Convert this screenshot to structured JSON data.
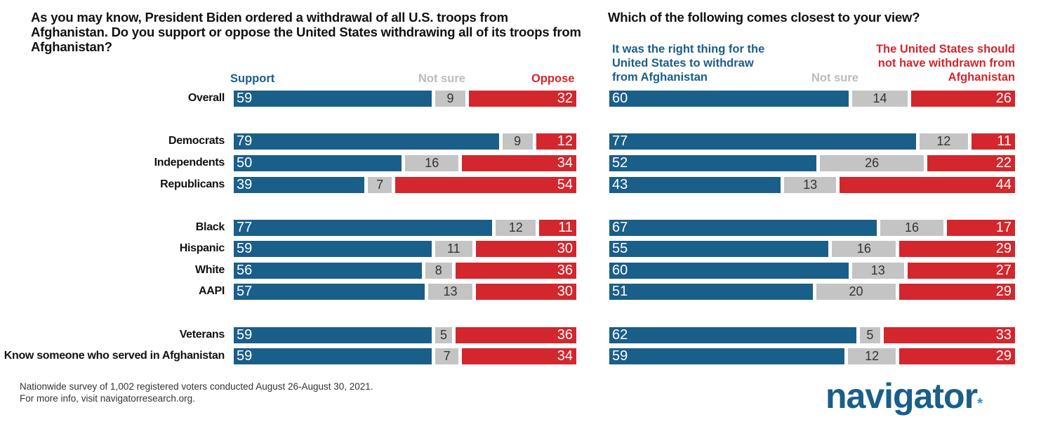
{
  "colors": {
    "support": "#1a5e8a",
    "notsure": "#c4c4c4",
    "oppose": "#d3262d"
  },
  "chart_data": [
    {
      "type": "bar",
      "stacked": true,
      "title": "As you may know, President Biden ordered a withdrawal of all U.S. troops from Afghanistan. Do you support or oppose the United States withdrawing all of its troops from Afghanistan?",
      "legend": [
        "Support",
        "Not sure",
        "Oppose"
      ],
      "categories": [
        "Overall",
        "Democrats",
        "Independents",
        "Republicans",
        "Black",
        "Hispanic",
        "White",
        "AAPI",
        "Veterans",
        "Know someone who served in Afghanistan"
      ],
      "series": [
        {
          "name": "Support",
          "values": [
            59,
            79,
            50,
            39,
            77,
            59,
            56,
            57,
            59,
            59
          ]
        },
        {
          "name": "Not sure",
          "values": [
            9,
            9,
            16,
            7,
            12,
            11,
            8,
            13,
            5,
            7
          ]
        },
        {
          "name": "Oppose",
          "values": [
            32,
            12,
            34,
            54,
            11,
            30,
            36,
            30,
            36,
            34
          ]
        }
      ]
    },
    {
      "type": "bar",
      "stacked": true,
      "title": "Which of the following comes closest to your view?",
      "legend": [
        "It was the right thing for the United States to withdraw from Afghanistan",
        "Not sure",
        "The United States should not have withdrawn from Afghanistan"
      ],
      "categories": [
        "Overall",
        "Democrats",
        "Independents",
        "Republicans",
        "Black",
        "Hispanic",
        "White",
        "AAPI",
        "Veterans",
        "Know someone who served in Afghanistan"
      ],
      "series": [
        {
          "name": "Right thing",
          "values": [
            60,
            77,
            52,
            43,
            67,
            55,
            60,
            51,
            62,
            59
          ]
        },
        {
          "name": "Not sure",
          "values": [
            14,
            12,
            26,
            13,
            16,
            16,
            13,
            20,
            5,
            12
          ]
        },
        {
          "name": "Should not have",
          "values": [
            26,
            11,
            22,
            44,
            17,
            29,
            27,
            29,
            33,
            29
          ]
        }
      ]
    }
  ],
  "footer": {
    "line1": "Nationwide survey of 1,002 registered voters conducted August 26-August 30, 2021.",
    "line2": "For more info, visit navigatorresearch.org."
  },
  "logo": "navigator"
}
